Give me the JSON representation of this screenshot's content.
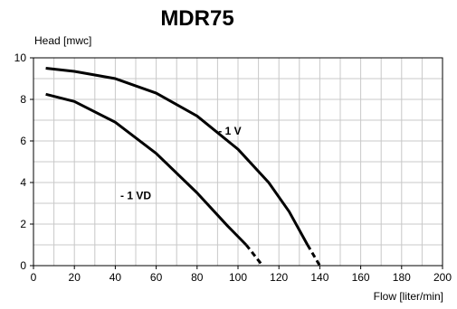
{
  "chart_data": {
    "type": "line",
    "title": "MDR75",
    "xlabel": "Flow [liter/min]",
    "ylabel": "Head [mwc]",
    "xlim": [
      0,
      200
    ],
    "ylim": [
      0,
      10
    ],
    "x_ticks": [
      0,
      20,
      40,
      60,
      80,
      100,
      120,
      140,
      160,
      180,
      200
    ],
    "y_ticks": [
      0,
      2,
      4,
      6,
      8,
      10
    ],
    "grid": true,
    "series": [
      {
        "name": "- 1 V",
        "label_at": [
          96,
          6.3
        ],
        "x": [
          6,
          20,
          40,
          60,
          80,
          100,
          115,
          125,
          134,
          140
        ],
        "y": [
          9.5,
          9.35,
          9.0,
          8.3,
          7.2,
          5.6,
          4.0,
          2.6,
          1.0,
          0
        ],
        "dashed_from_x": 134
      },
      {
        "name": "- 1 VD",
        "label_at": [
          50,
          3.2
        ],
        "x": [
          6,
          20,
          40,
          60,
          80,
          95,
          104,
          108,
          112
        ],
        "y": [
          8.25,
          7.9,
          6.9,
          5.4,
          3.5,
          1.9,
          1.0,
          0.5,
          0
        ],
        "dashed_from_x": 104
      }
    ]
  }
}
